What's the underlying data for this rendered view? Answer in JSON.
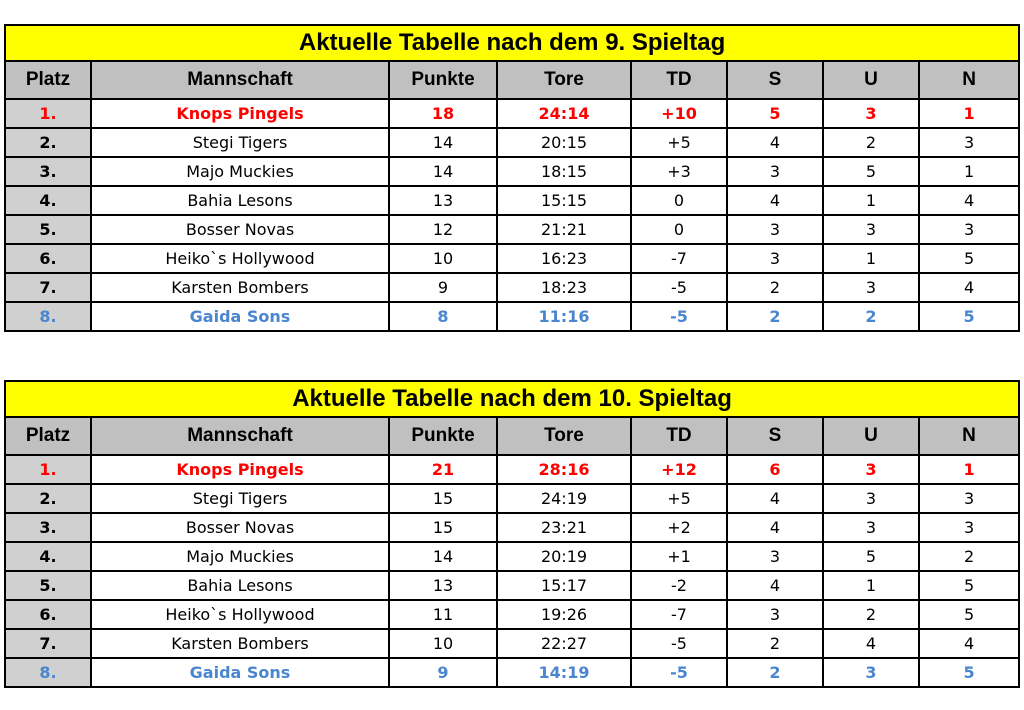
{
  "columns": [
    "Platz",
    "Mannschaft",
    "Punkte",
    "Tore",
    "TD",
    "S",
    "U",
    "N"
  ],
  "tables": [
    {
      "title": "Aktuelle Tabelle nach dem 9. Spieltag",
      "rows": [
        [
          "1.",
          "Knops Pingels",
          "18",
          "24:14",
          "+10",
          "5",
          "3",
          "1"
        ],
        [
          "2.",
          "Stegi Tigers",
          "14",
          "20:15",
          "+5",
          "4",
          "2",
          "3"
        ],
        [
          "3.",
          "Majo Muckies",
          "14",
          "18:15",
          "+3",
          "3",
          "5",
          "1"
        ],
        [
          "4.",
          "Bahia Lesons",
          "13",
          "15:15",
          "0",
          "4",
          "1",
          "4"
        ],
        [
          "5.",
          "Bosser Novas",
          "12",
          "21:21",
          "0",
          "3",
          "3",
          "3"
        ],
        [
          "6.",
          "Heiko`s Hollywood",
          "10",
          "16:23",
          "-7",
          "3",
          "1",
          "5"
        ],
        [
          "7.",
          "Karsten Bombers",
          "9",
          "18:23",
          "-5",
          "2",
          "3",
          "4"
        ],
        [
          "8.",
          "Gaida Sons",
          "8",
          "11:16",
          "-5",
          "2",
          "2",
          "5"
        ]
      ]
    },
    {
      "title": "Aktuelle Tabelle nach dem 10. Spieltag",
      "rows": [
        [
          "1.",
          "Knops Pingels",
          "21",
          "28:16",
          "+12",
          "6",
          "3",
          "1"
        ],
        [
          "2.",
          "Stegi Tigers",
          "15",
          "24:19",
          "+5",
          "4",
          "3",
          "3"
        ],
        [
          "3.",
          "Bosser Novas",
          "15",
          "23:21",
          "+2",
          "4",
          "3",
          "3"
        ],
        [
          "4.",
          "Majo Muckies",
          "14",
          "20:19",
          "+1",
          "3",
          "5",
          "2"
        ],
        [
          "5.",
          "Bahia Lesons",
          "13",
          "15:17",
          "-2",
          "4",
          "1",
          "5"
        ],
        [
          "6.",
          "Heiko`s Hollywood",
          "11",
          "19:26",
          "-7",
          "3",
          "2",
          "5"
        ],
        [
          "7.",
          "Karsten Bombers",
          "10",
          "22:27",
          "-5",
          "2",
          "4",
          "4"
        ],
        [
          "8.",
          "Gaida Sons",
          "9",
          "14:19",
          "-5",
          "2",
          "3",
          "5"
        ]
      ]
    }
  ],
  "colors": {
    "title_bg": "#ffff00",
    "header_bg": "#c0c0c0",
    "leader": "#ff0000",
    "last_place": "#4a86d0"
  }
}
